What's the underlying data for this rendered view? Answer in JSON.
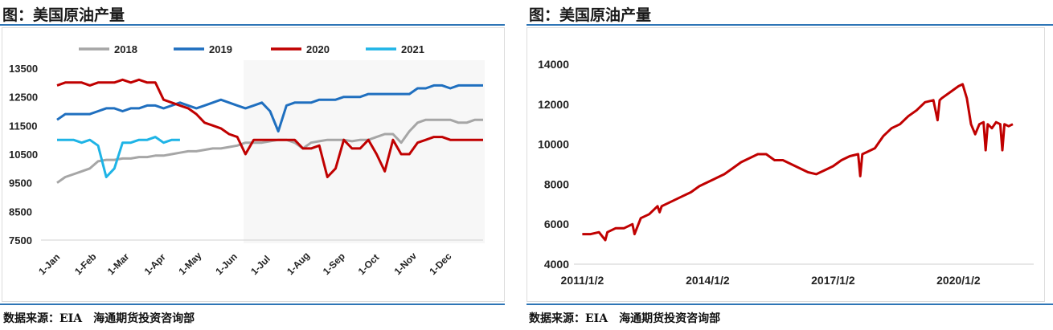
{
  "left_panel": {
    "title": "图：美国原油产量",
    "source": "数据来源：EIA　海通期货投资咨询部"
  },
  "right_panel": {
    "title": "图：美国原油产量",
    "source": "数据来源：EIA　海通期货投资咨询部"
  },
  "colors": {
    "accent_rule": "#2e75b6",
    "s2018": "#a6a6a6",
    "s2019": "#1f6fbf",
    "s2020": "#c00000",
    "s2021": "#1fb4e6",
    "long_series": "#c00000"
  },
  "chart_data": [
    {
      "type": "line",
      "title": "",
      "xlabel": "",
      "ylabel": "",
      "ylim": [
        7500,
        13500
      ],
      "yticks": [
        "13500",
        "12500",
        "11500",
        "10500",
        "9500",
        "8500",
        "7500"
      ],
      "xlim": [
        1,
        53
      ],
      "xticks": [
        {
          "label": "1-Jan",
          "week": 1
        },
        {
          "label": "1-Feb",
          "week": 5.4
        },
        {
          "label": "1-Mar",
          "week": 9.4
        },
        {
          "label": "1-Apr",
          "week": 13.9
        },
        {
          "label": "1-May",
          "week": 18.1
        },
        {
          "label": "1-Jun",
          "week": 22.6
        },
        {
          "label": "1-Jul",
          "week": 26.9
        },
        {
          "label": "1-Aug",
          "week": 31.3
        },
        {
          "label": "1-Sep",
          "week": 35.7
        },
        {
          "label": "1-Oct",
          "week": 40
        },
        {
          "label": "1-Nov",
          "week": 44.4
        },
        {
          "label": "1-Dec",
          "week": 48.7
        }
      ],
      "legend_position": "top",
      "grid": false,
      "series": [
        {
          "name": "2018",
          "color_key": "s2018",
          "x": [
            1,
            2,
            3,
            4,
            5,
            6,
            7,
            8,
            9,
            10,
            11,
            12,
            13,
            14,
            15,
            16,
            17,
            18,
            19,
            20,
            21,
            22,
            23,
            24,
            25,
            26,
            27,
            28,
            29,
            30,
            31,
            32,
            33,
            34,
            35,
            36,
            37,
            38,
            39,
            40,
            41,
            42,
            43,
            44,
            45,
            46,
            47,
            48,
            49,
            50,
            51,
            52,
            53
          ],
          "y": [
            9500,
            9700,
            9800,
            9900,
            10000,
            10250,
            10300,
            10300,
            10350,
            10350,
            10400,
            10400,
            10450,
            10450,
            10500,
            10550,
            10600,
            10600,
            10650,
            10700,
            10700,
            10750,
            10800,
            10900,
            10900,
            10900,
            10950,
            11000,
            11000,
            10900,
            10700,
            10900,
            10950,
            11000,
            11000,
            11000,
            10950,
            11000,
            11000,
            11100,
            11200,
            11200,
            10900,
            11300,
            11600,
            11700,
            11700,
            11700,
            11700,
            11600,
            11600,
            11700,
            11700
          ]
        },
        {
          "name": "2019",
          "color_key": "s2019",
          "x": [
            1,
            2,
            3,
            4,
            5,
            6,
            7,
            8,
            9,
            10,
            11,
            12,
            13,
            14,
            15,
            16,
            17,
            18,
            19,
            20,
            21,
            22,
            23,
            24,
            25,
            26,
            27,
            28,
            29,
            30,
            31,
            32,
            33,
            34,
            35,
            36,
            37,
            38,
            39,
            40,
            41,
            42,
            43,
            44,
            45,
            46,
            47,
            48,
            49,
            50,
            51,
            52,
            53
          ],
          "y": [
            11700,
            11900,
            11900,
            11900,
            11900,
            12000,
            12100,
            12100,
            12000,
            12100,
            12100,
            12200,
            12200,
            12100,
            12200,
            12300,
            12200,
            12100,
            12200,
            12300,
            12400,
            12300,
            12200,
            12100,
            12200,
            12300,
            12000,
            11300,
            12200,
            12300,
            12300,
            12300,
            12400,
            12400,
            12400,
            12500,
            12500,
            12500,
            12600,
            12600,
            12600,
            12600,
            12600,
            12600,
            12800,
            12800,
            12900,
            12900,
            12800,
            12900,
            12900,
            12900,
            12900
          ]
        },
        {
          "name": "2020",
          "color_key": "s2020",
          "x": [
            1,
            2,
            3,
            4,
            5,
            6,
            7,
            8,
            9,
            10,
            11,
            12,
            13,
            14,
            15,
            16,
            17,
            18,
            19,
            20,
            21,
            22,
            23,
            24,
            25,
            26,
            27,
            28,
            29,
            30,
            31,
            32,
            33,
            34,
            35,
            36,
            37,
            38,
            39,
            40,
            41,
            42,
            43,
            44,
            45,
            46,
            47,
            48,
            49,
            50,
            51,
            52,
            53
          ],
          "y": [
            12900,
            13000,
            13000,
            13000,
            12900,
            13000,
            13000,
            13000,
            13100,
            13000,
            13100,
            13000,
            13000,
            12400,
            12300,
            12200,
            12100,
            11900,
            11600,
            11500,
            11400,
            11200,
            11100,
            10500,
            11000,
            11000,
            11000,
            11000,
            11000,
            11000,
            10700,
            10700,
            10800,
            9700,
            10000,
            11000,
            10700,
            10700,
            11000,
            10500,
            9900,
            11000,
            10500,
            10500,
            10900,
            11000,
            11100,
            11100,
            11000,
            11000,
            11000,
            11000,
            11000
          ]
        },
        {
          "name": "2021",
          "color_key": "s2021",
          "x": [
            1,
            2,
            3,
            4,
            5,
            6,
            7,
            8,
            9,
            10,
            11,
            12,
            13,
            14,
            15,
            16
          ],
          "y": [
            11000,
            11000,
            11000,
            10900,
            11000,
            10800,
            9700,
            10000,
            10900,
            10900,
            11000,
            11000,
            11100,
            10900,
            11000,
            11000
          ]
        }
      ]
    },
    {
      "type": "line",
      "title": "",
      "xlabel": "",
      "ylabel": "",
      "ylim": [
        4000,
        14000
      ],
      "yticks": [
        "14000",
        "12000",
        "10000",
        "8000",
        "6000",
        "4000"
      ],
      "xlim": [
        "2011/1/2",
        "2021/4/30"
      ],
      "xticks": [
        "2011/1/2",
        "2014/1/2",
        "2017/1/2",
        "2020/1/2"
      ],
      "xtick_years": [
        2011.0,
        2014.0,
        2017.0,
        2020.0
      ],
      "x_range_years": [
        2010.8,
        2021.8
      ],
      "grid": false,
      "series": [
        {
          "color_key": "long_series",
          "x_years": [
            2011.0,
            2011.2,
            2011.4,
            2011.55,
            2011.6,
            2011.8,
            2012.0,
            2012.2,
            2012.25,
            2012.4,
            2012.6,
            2012.8,
            2012.85,
            2012.9,
            2013.0,
            2013.2,
            2013.4,
            2013.6,
            2013.8,
            2014.0,
            2014.2,
            2014.4,
            2014.6,
            2014.8,
            2015.0,
            2015.2,
            2015.4,
            2015.6,
            2015.8,
            2016.0,
            2016.2,
            2016.4,
            2016.6,
            2016.8,
            2017.0,
            2017.2,
            2017.4,
            2017.6,
            2017.65,
            2017.7,
            2017.8,
            2018.0,
            2018.2,
            2018.4,
            2018.6,
            2018.8,
            2019.0,
            2019.2,
            2019.4,
            2019.5,
            2019.55,
            2019.6,
            2019.8,
            2020.0,
            2020.1,
            2020.2,
            2020.3,
            2020.4,
            2020.5,
            2020.6,
            2020.65,
            2020.7,
            2020.8,
            2020.9,
            2021.0,
            2021.05,
            2021.1,
            2021.2,
            2021.3
          ],
          "y": [
            5500,
            5500,
            5600,
            5200,
            5600,
            5800,
            5800,
            6000,
            5500,
            6300,
            6500,
            6900,
            6600,
            6900,
            7000,
            7200,
            7400,
            7600,
            7900,
            8100,
            8300,
            8500,
            8800,
            9100,
            9300,
            9500,
            9500,
            9200,
            9200,
            9000,
            8800,
            8600,
            8500,
            8700,
            8900,
            9200,
            9400,
            9500,
            8400,
            9500,
            9600,
            9800,
            10400,
            10800,
            11000,
            11400,
            11700,
            12100,
            12200,
            11200,
            12200,
            12300,
            12600,
            12900,
            13000,
            12300,
            11000,
            10500,
            11000,
            11100,
            9700,
            11000,
            10800,
            11100,
            11000,
            9700,
            11000,
            10900,
            11000
          ]
        }
      ]
    }
  ]
}
